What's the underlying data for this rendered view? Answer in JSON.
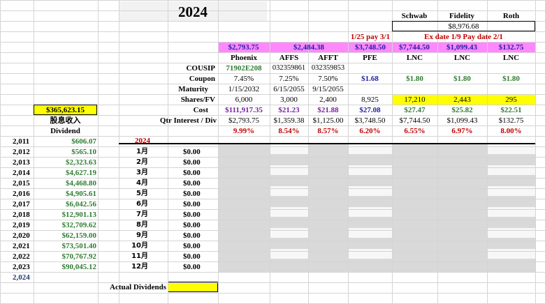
{
  "sheet": {
    "year_title": "2024",
    "colors": {
      "pink": "#ff88ff",
      "yellow": "#ffff00",
      "gray": "#d9d9d9",
      "light": "#f2f2f2",
      "green": "#2e7d32",
      "blue": "#1f1f9f",
      "purple": "#7a1fa2",
      "red": "#c00000",
      "navy": "#1f3a7a"
    },
    "accounts": {
      "schwab": "Schwab",
      "fidelity": "Fidelity",
      "roth": "Roth",
      "total": "$8,976.68"
    },
    "pay_notes": {
      "note1": "1/25 pay 3/1",
      "note2": "Ex date 1/9 Pay date 2/1"
    },
    "pink_row": {
      "phx": "$2,793.75",
      "affs_afft": "$2,484.38",
      "pfe": "$3,748.50",
      "lnc1": "$7,744.50",
      "lnc2": "$1,099.43",
      "lnc3": "$132.75"
    },
    "row_labels": {
      "cousip": "COUSIP",
      "coupon": "Coupon",
      "maturity": "Maturity",
      "shares": "Shares/FV",
      "cost": "Cost",
      "qtr": "Qtr Interest / Div"
    },
    "securities": [
      {
        "name": "Phoenix",
        "cousip": "71902E208",
        "coupon": "7.45%",
        "maturity": "1/15/2032",
        "shares": "6,000",
        "cost": "$111,917.35",
        "qtr": "$2,793.75",
        "yield": "9.99%"
      },
      {
        "name": "AFFS",
        "cousip": "032359861",
        "coupon": "7.25%",
        "maturity": "6/15/2055",
        "shares": "3,000",
        "cost": "$21.23",
        "qtr": "$1,359.38",
        "yield": "8.54%"
      },
      {
        "name": "AFFT",
        "cousip": "032359853",
        "coupon": "7.50%",
        "maturity": "9/15/2055",
        "shares": "2,400",
        "cost": "$21.88",
        "qtr": "$1,125.00",
        "yield": "8.57%"
      },
      {
        "name": "PFE",
        "cousip": "",
        "coupon": "$1.68",
        "maturity": "",
        "shares": "8,925",
        "cost": "$27.08",
        "qtr": "$3,748.50",
        "yield": "6.20%"
      },
      {
        "name": "LNC",
        "cousip": "",
        "coupon": "$1.80",
        "maturity": "",
        "shares": "17,210",
        "cost": "$27.47",
        "qtr": "$7,744.50",
        "yield": "6.55%"
      },
      {
        "name": "LNC",
        "cousip": "",
        "coupon": "$1.80",
        "maturity": "",
        "shares": "2,443",
        "cost": "$25.82",
        "qtr": "$1,099.43",
        "yield": "6.97%"
      },
      {
        "name": "LNC",
        "cousip": "",
        "coupon": "$1.80",
        "maturity": "",
        "shares": "295",
        "cost": "$22.51",
        "qtr": "$132.75",
        "yield": "8.00%"
      }
    ],
    "dividend_total": "$365,623.15",
    "chinese_label": "股息收入",
    "dividend_label": "Dividend",
    "history": [
      {
        "year": "2,011",
        "amount": "$606.07"
      },
      {
        "year": "2,012",
        "amount": "$565.10"
      },
      {
        "year": "2,013",
        "amount": "$2,323.63"
      },
      {
        "year": "2,014",
        "amount": "$4,627.19"
      },
      {
        "year": "2,015",
        "amount": "$4,468.80"
      },
      {
        "year": "2,016",
        "amount": "$4,905.61"
      },
      {
        "year": "2,017",
        "amount": "$6,042.56"
      },
      {
        "year": "2,018",
        "amount": "$12,901.13"
      },
      {
        "year": "2,019",
        "amount": "$32,709.62"
      },
      {
        "year": "2,020",
        "amount": "$62,159.00"
      },
      {
        "year": "2,021",
        "amount": "$73,501.40"
      },
      {
        "year": "2,022",
        "amount": "$70,767.92"
      },
      {
        "year": "2,023",
        "amount": "$90,045.12"
      },
      {
        "year": "2,024",
        "amount": ""
      }
    ],
    "month_year": "2024",
    "months": [
      {
        "label": "1月",
        "amount": "$0.00"
      },
      {
        "label": "2月",
        "amount": "$0.00"
      },
      {
        "label": "3月",
        "amount": "$0.00"
      },
      {
        "label": "4月",
        "amount": "$0.00"
      },
      {
        "label": "5月",
        "amount": "$0.00"
      },
      {
        "label": "6月",
        "amount": "$0.00"
      },
      {
        "label": "7月",
        "amount": "$0.00"
      },
      {
        "label": "8月",
        "amount": "$0.00"
      },
      {
        "label": "9月",
        "amount": "$0.00"
      },
      {
        "label": "10月",
        "amount": "$0.00"
      },
      {
        "label": "11月",
        "amount": "$0.00"
      },
      {
        "label": "12月",
        "amount": "$0.00"
      }
    ],
    "actual_dividends_label": "Actual Dividends"
  }
}
